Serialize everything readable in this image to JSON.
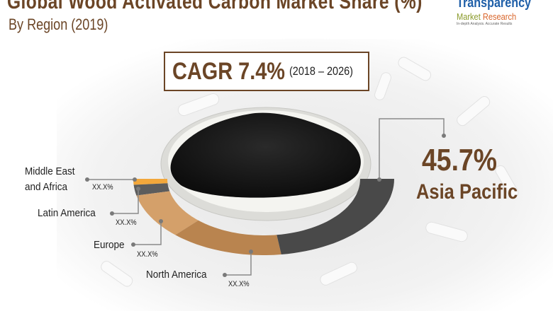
{
  "header": {
    "title": "Global Wood Activated Carbon Market Share (%)",
    "subtitle": "By Region (2019)"
  },
  "logo": {
    "line1": "Transparency",
    "line2a": "Market",
    "line2b": "Research",
    "tagline": "In-depth Analysis. Accurate Results"
  },
  "cagr": {
    "value": "CAGR 7.4%",
    "period": "(2018 – 2026)"
  },
  "chart_data": {
    "type": "pie",
    "subtype": "half-donut",
    "title": "Global Wood Activated Carbon Market Share (%)",
    "subtitle": "By Region (2019)",
    "categories": [
      "Middle East and Africa",
      "Latin America",
      "Europe",
      "North America",
      "Asia Pacific"
    ],
    "labels": [
      "XX.X%",
      "XX.X%",
      "XX.X%",
      "XX.X%",
      "45.7%"
    ],
    "values": [
      2.5,
      4.5,
      19.3,
      28.0,
      45.7
    ],
    "colors": [
      "#f2a73b",
      "#5c5c5c",
      "#d4a06a",
      "#b9844f",
      "#494949"
    ],
    "highlight": {
      "category": "Asia Pacific",
      "value": "45.7%",
      "name": "Asia Pacific"
    }
  },
  "labels": {
    "mea_line1": "Middle East",
    "mea_line2": "and Africa",
    "la": "Latin America",
    "europe": "Europe",
    "na": "North America",
    "pct_placeholder": "XX.X%"
  }
}
